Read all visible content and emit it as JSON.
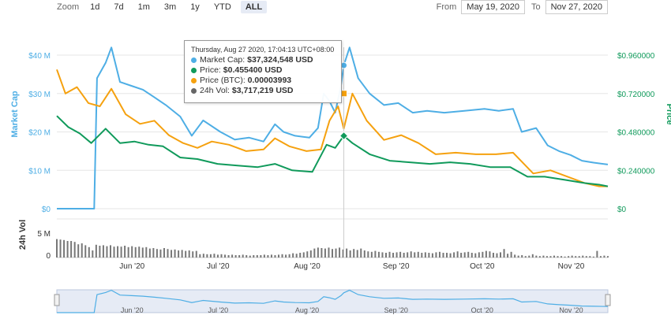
{
  "zoom": {
    "label": "Zoom",
    "buttons": [
      "1d",
      "7d",
      "1m",
      "3m",
      "1y",
      "YTD",
      "ALL"
    ],
    "active": "ALL"
  },
  "range": {
    "from_label": "From",
    "from": "May 19, 2020",
    "to_label": "To",
    "to": "Nov 27, 2020"
  },
  "colors": {
    "market_cap": "#4eaee5",
    "price": "#109a5b",
    "price_btc": "#f5a10f",
    "volume": "#777777"
  },
  "tooltip": {
    "header": "Thursday, Aug 27 2020, 17:04:13 UTC+08:00",
    "rows": [
      {
        "label": "Market Cap:",
        "value": "$37,324,548 USD"
      },
      {
        "label": "Price:",
        "value": "$0.455400 USD"
      },
      {
        "label": "Price (BTC):",
        "value": "0.00003993"
      },
      {
        "label": "24h Vol:",
        "value": "$3,717,219 USD"
      }
    ]
  },
  "chart_data": {
    "type": "line",
    "x_range": [
      "2020-05-19",
      "2020-11-27"
    ],
    "x_tick_labels": [
      "Jun '20",
      "Jul '20",
      "Aug '20",
      "Sep '20",
      "Oct '20",
      "Nov '20"
    ],
    "left_axis": {
      "label": "Market Cap",
      "ticks": [
        "$0",
        "$10 M",
        "$20 M",
        "$30 M",
        "$40 M"
      ],
      "range": [
        0,
        40000000
      ]
    },
    "right_axis": {
      "label": "Price",
      "ticks": [
        "$0",
        "$0.240000",
        "$0.480000",
        "$0.720000",
        "$0.960000"
      ],
      "range": [
        0,
        0.96
      ]
    },
    "volume_axis": {
      "label": "24h Vol",
      "ticks": [
        "0",
        "5 M"
      ],
      "range": [
        0,
        5000000
      ]
    },
    "series": [
      {
        "name": "Market Cap",
        "key": "market_cap",
        "axis": "left",
        "x": [
          "2020-05-19",
          "2020-06-01",
          "2020-06-02",
          "2020-06-05",
          "2020-06-07",
          "2020-06-10",
          "2020-06-14",
          "2020-06-18",
          "2020-06-22",
          "2020-06-26",
          "2020-07-01",
          "2020-07-05",
          "2020-07-09",
          "2020-07-15",
          "2020-07-20",
          "2020-07-25",
          "2020-07-30",
          "2020-08-03",
          "2020-08-06",
          "2020-08-10",
          "2020-08-15",
          "2020-08-18",
          "2020-08-20",
          "2020-08-22",
          "2020-08-24",
          "2020-08-26",
          "2020-08-27",
          "2020-08-29",
          "2020-09-01",
          "2020-09-05",
          "2020-09-10",
          "2020-09-15",
          "2020-09-20",
          "2020-09-25",
          "2020-10-01",
          "2020-10-08",
          "2020-10-15",
          "2020-10-20",
          "2020-10-25",
          "2020-10-28",
          "2020-11-02",
          "2020-11-06",
          "2020-11-10",
          "2020-11-14",
          "2020-11-18",
          "2020-11-22",
          "2020-11-27"
        ],
        "values": [
          0,
          0,
          34000000,
          38000000,
          42000000,
          33000000,
          32000000,
          31000000,
          29000000,
          27000000,
          24000000,
          19000000,
          23000000,
          20000000,
          18000000,
          18500000,
          17500000,
          22000000,
          20000000,
          19000000,
          18500000,
          21000000,
          30000000,
          28000000,
          25000000,
          32000000,
          37324548,
          42000000,
          34000000,
          30000000,
          27000000,
          27500000,
          25000000,
          25500000,
          25000000,
          25500000,
          26000000,
          25500000,
          26000000,
          20000000,
          21000000,
          16500000,
          15000000,
          14000000,
          12500000,
          12000000,
          11500000
        ]
      },
      {
        "name": "Price (BTC)",
        "key": "price_btc",
        "axis": "right",
        "x": [
          "2020-05-19",
          "2020-05-22",
          "2020-05-26",
          "2020-05-30",
          "2020-06-03",
          "2020-06-07",
          "2020-06-12",
          "2020-06-17",
          "2020-06-22",
          "2020-06-27",
          "2020-07-02",
          "2020-07-07",
          "2020-07-12",
          "2020-07-18",
          "2020-07-24",
          "2020-07-30",
          "2020-08-03",
          "2020-08-08",
          "2020-08-14",
          "2020-08-19",
          "2020-08-22",
          "2020-08-25",
          "2020-08-27",
          "2020-08-30",
          "2020-09-04",
          "2020-09-10",
          "2020-09-16",
          "2020-09-22",
          "2020-09-28",
          "2020-10-05",
          "2020-10-12",
          "2020-10-19",
          "2020-10-25",
          "2020-11-01",
          "2020-11-07",
          "2020-11-13",
          "2020-11-19",
          "2020-11-24",
          "2020-11-27"
        ],
        "values": [
          0.87,
          0.72,
          0.76,
          0.66,
          0.64,
          0.75,
          0.59,
          0.53,
          0.55,
          0.46,
          0.41,
          0.38,
          0.42,
          0.4,
          0.36,
          0.37,
          0.44,
          0.39,
          0.36,
          0.37,
          0.55,
          0.64,
          0.5,
          0.72,
          0.55,
          0.43,
          0.46,
          0.41,
          0.34,
          0.35,
          0.34,
          0.34,
          0.35,
          0.22,
          0.24,
          0.2,
          0.16,
          0.14,
          0.14
        ]
      },
      {
        "name": "Price",
        "key": "price",
        "axis": "right",
        "x": [
          "2020-05-19",
          "2020-05-23",
          "2020-05-27",
          "2020-05-31",
          "2020-06-05",
          "2020-06-10",
          "2020-06-15",
          "2020-06-20",
          "2020-06-25",
          "2020-07-01",
          "2020-07-07",
          "2020-07-14",
          "2020-07-21",
          "2020-07-28",
          "2020-08-03",
          "2020-08-09",
          "2020-08-16",
          "2020-08-21",
          "2020-08-24",
          "2020-08-27",
          "2020-08-30",
          "2020-09-05",
          "2020-09-12",
          "2020-09-19",
          "2020-09-26",
          "2020-10-03",
          "2020-10-10",
          "2020-10-17",
          "2020-10-24",
          "2020-10-30",
          "2020-11-05",
          "2020-11-12",
          "2020-11-19",
          "2020-11-24",
          "2020-11-27"
        ],
        "values": [
          0.58,
          0.51,
          0.47,
          0.41,
          0.5,
          0.41,
          0.42,
          0.4,
          0.39,
          0.32,
          0.31,
          0.28,
          0.27,
          0.26,
          0.28,
          0.24,
          0.23,
          0.4,
          0.38,
          0.4554,
          0.41,
          0.34,
          0.3,
          0.29,
          0.28,
          0.29,
          0.28,
          0.26,
          0.26,
          0.2,
          0.2,
          0.18,
          0.16,
          0.15,
          0.14
        ]
      }
    ],
    "volume": {
      "name": "24h Vol",
      "x_start": "2020-05-19",
      "x_end": "2020-11-27",
      "values": [
        3.9,
        3.8,
        3.7,
        3.5,
        3.5,
        3.3,
        2.8,
        3.0,
        2.6,
        2.2,
        1.5,
        2.7,
        2.5,
        2.6,
        2.4,
        2.6,
        2.3,
        2.4,
        2.3,
        2.5,
        2.2,
        2.4,
        2.2,
        2.3,
        2.1,
        2.2,
        1.9,
        2.0,
        1.8,
        1.7,
        2.0,
        1.8,
        1.6,
        1.7,
        1.5,
        1.6,
        1.4,
        1.5,
        1.3,
        1.4,
        0.7,
        0.8,
        0.7,
        0.7,
        0.8,
        0.6,
        0.7,
        0.6,
        0.5,
        0.6,
        0.5,
        0.5,
        0.6,
        0.5,
        0.4,
        0.5,
        0.5,
        0.5,
        0.6,
        0.5,
        0.6,
        0.5,
        0.6,
        0.7,
        0.6,
        0.7,
        0.9,
        0.8,
        1.0,
        1.1,
        1.3,
        1.5,
        1.9,
        2.1,
        2.0,
        1.9,
        2.1,
        1.8,
        1.9,
        2.1,
        1.7,
        1.9,
        1.5,
        1.8,
        1.6,
        1.9,
        1.5,
        1.3,
        1.2,
        1.4,
        1.2,
        1.1,
        1.0,
        1.2,
        1.0,
        1.1,
        1.2,
        1.0,
        1.1,
        1.3,
        1.1,
        1.2,
        1.0,
        1.1,
        1.0,
        0.9,
        1.1,
        1.2,
        1.0,
        1.0,
        0.9,
        1.1,
        1.3,
        1.0,
        1.1,
        1.2,
        1.0,
        0.9,
        1.1,
        1.2,
        1.4,
        1.3,
        1.0,
        0.9,
        1.1,
        1.8,
        0.8,
        1.2,
        0.6,
        0.4,
        0.5,
        0.3,
        0.4,
        0.7,
        0.4,
        0.3,
        0.4,
        0.3,
        0.3,
        0.4,
        0.3,
        0.3,
        0.2,
        0.3,
        0.4,
        0.3,
        0.3,
        0.4,
        0.3,
        0.3,
        0.2,
        1.4,
        0.3,
        0.4,
        0.3
      ]
    },
    "navigator": {
      "x_tick_labels": [
        "Jun '20",
        "Jul '20",
        "Aug '20",
        "Sep '20",
        "Oct '20",
        "Nov '20"
      ]
    }
  }
}
